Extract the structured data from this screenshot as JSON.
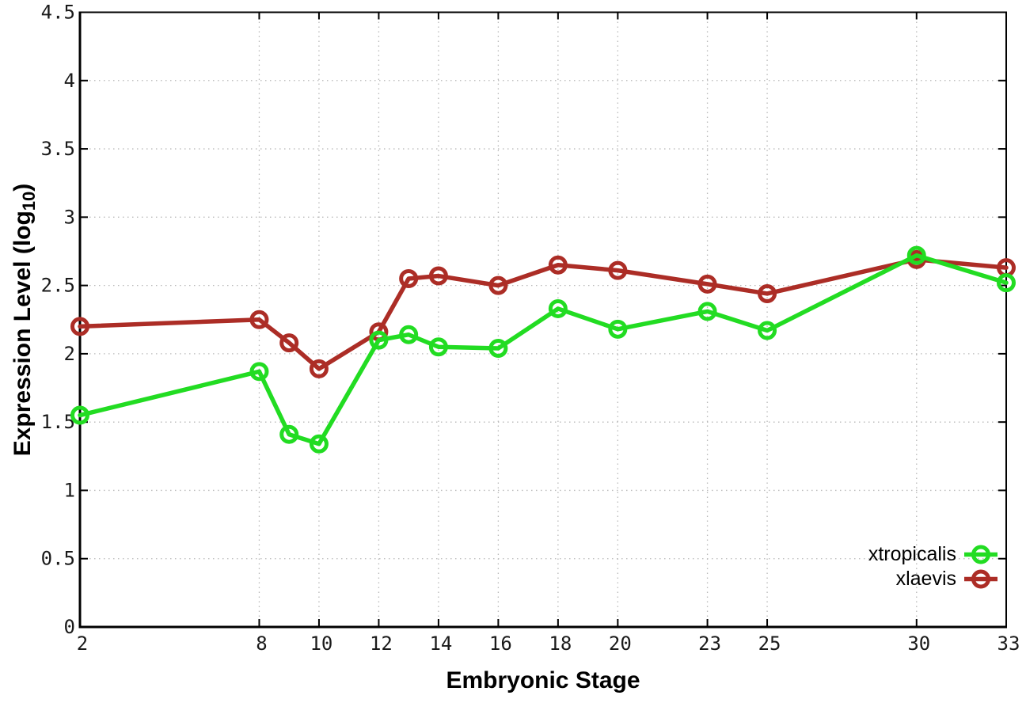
{
  "figure": {
    "background": "#ffffff",
    "axis_color": "#000000",
    "grid_color": "#b8b8b8",
    "tick_label_color": "#1a1a1a"
  },
  "labels": {
    "xlabel": "Embryonic Stage",
    "ylabel_prefix": "Expression Level (log",
    "ylabel_sub": "10",
    "ylabel_suffix": ")"
  },
  "chart_data": {
    "type": "line",
    "title": "",
    "xlabel": "Embryonic Stage",
    "ylabel": "Expression Level (log10)",
    "xlim": [
      2,
      33
    ],
    "ylim": [
      0,
      4.5
    ],
    "x_ticks": [
      2,
      8,
      10,
      12,
      14,
      16,
      18,
      20,
      23,
      25,
      30,
      33
    ],
    "y_ticks": [
      0,
      0.5,
      1,
      1.5,
      2,
      2.5,
      3,
      3.5,
      4,
      4.5
    ],
    "grid": true,
    "grid_style": "dotted",
    "legend_position": "inside bottom-right",
    "marker": "open-circle",
    "x": [
      2,
      8,
      9,
      10,
      12,
      13,
      14,
      16,
      18,
      20,
      23,
      25,
      30,
      33
    ],
    "series": [
      {
        "name": "xtropicalis",
        "color": "#22dc22",
        "values": [
          1.55,
          1.87,
          1.41,
          1.34,
          2.1,
          2.14,
          2.05,
          2.04,
          2.33,
          2.18,
          2.31,
          2.17,
          2.72,
          2.52
        ]
      },
      {
        "name": "xlaevis",
        "color": "#ac2d26",
        "values": [
          2.2,
          2.25,
          2.08,
          1.89,
          2.16,
          2.55,
          2.57,
          2.5,
          2.65,
          2.61,
          2.51,
          2.44,
          2.69,
          2.63
        ]
      }
    ]
  }
}
